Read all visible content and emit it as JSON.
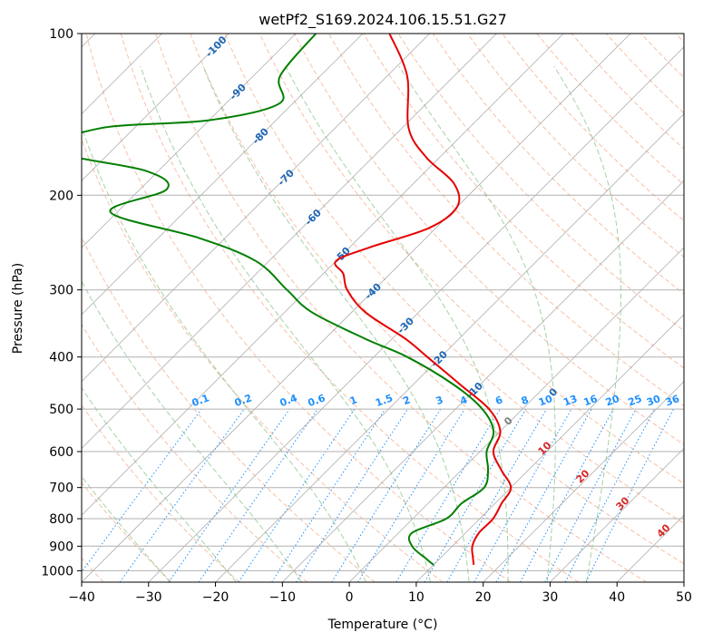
{
  "chart_data": {
    "type": "line",
    "title": "wetPf2_S169.2024.106.15.51.G27",
    "xlabel": "Temperature (°C)",
    "ylabel": "Pressure (hPa)",
    "xlim": [
      -40,
      50
    ],
    "ylim": [
      1050,
      100
    ],
    "y_scale": "log",
    "grid": true,
    "skew_t": true,
    "x_ticks": [
      -40,
      -30,
      -20,
      -10,
      0,
      10,
      20,
      30,
      40,
      50
    ],
    "y_ticks": [
      100,
      200,
      300,
      400,
      500,
      600,
      700,
      800,
      900,
      1000
    ],
    "colors": {
      "temperature": "#e60000",
      "dewpoint": "#007f00",
      "isotherm": "#1f66b4",
      "dry_adiabat": "#f4a582",
      "moist_adiabat": "#7fbf7f",
      "mixing_ratio": "#1e90ff",
      "mixing_label": "#1e90ff",
      "isotherm_label": "#1f66b4",
      "moist_label": "#d62728",
      "grid": "#b0b0b0"
    },
    "isotherm_labels": [
      "-100",
      "-90",
      "-80",
      "-70",
      "-60",
      "-50",
      "-40",
      "-30",
      "-20",
      "-10",
      "0"
    ],
    "isotherm_label_values": [
      -100,
      -90,
      -80,
      -70,
      -60,
      -50,
      -40,
      -30,
      -20,
      -10,
      0
    ],
    "moist_labels": [
      "10",
      "20",
      "30",
      "40"
    ],
    "mixing_ratio_labels": [
      "0.1",
      "0.2",
      "0.4",
      "0.6",
      "1",
      "1.5",
      "2",
      "3",
      "4",
      "6",
      "8",
      "10",
      "13",
      "16",
      "20",
      "25",
      "30",
      "36"
    ],
    "mixing_ratio_values": [
      0.1,
      0.2,
      0.4,
      0.6,
      1,
      1.5,
      2,
      3,
      4,
      6,
      8,
      10,
      13,
      16,
      20,
      25,
      30,
      36
    ],
    "series": [
      {
        "key": "temperature",
        "points": [
          [
            100,
            -76
          ],
          [
            120,
            -67
          ],
          [
            150,
            -59
          ],
          [
            170,
            -52
          ],
          [
            190,
            -44
          ],
          [
            210,
            -40
          ],
          [
            230,
            -41
          ],
          [
            250,
            -47
          ],
          [
            265,
            -50
          ],
          [
            280,
            -47
          ],
          [
            300,
            -44
          ],
          [
            330,
            -38
          ],
          [
            370,
            -28
          ],
          [
            400,
            -22
          ],
          [
            450,
            -13
          ],
          [
            500,
            -5
          ],
          [
            550,
            0
          ],
          [
            600,
            2
          ],
          [
            650,
            6
          ],
          [
            700,
            10
          ],
          [
            750,
            11
          ],
          [
            800,
            12
          ],
          [
            850,
            12
          ],
          [
            900,
            13
          ],
          [
            950,
            15
          ],
          [
            975,
            16
          ]
        ]
      },
      {
        "key": "dewpoint",
        "points": [
          [
            100,
            -87
          ],
          [
            120,
            -86
          ],
          [
            135,
            -82
          ],
          [
            145,
            -90
          ],
          [
            150,
            -105
          ],
          [
            165,
            -109
          ],
          [
            180,
            -92
          ],
          [
            195,
            -86
          ],
          [
            215,
            -91
          ],
          [
            240,
            -74
          ],
          [
            265,
            -62
          ],
          [
            300,
            -53
          ],
          [
            330,
            -46
          ],
          [
            370,
            -34
          ],
          [
            400,
            -25
          ],
          [
            450,
            -14
          ],
          [
            500,
            -6
          ],
          [
            550,
            -1
          ],
          [
            600,
            1
          ],
          [
            650,
            4
          ],
          [
            700,
            6
          ],
          [
            750,
            5
          ],
          [
            800,
            5
          ],
          [
            850,
            2
          ],
          [
            900,
            4
          ],
          [
            950,
            8
          ],
          [
            975,
            10
          ]
        ]
      }
    ]
  }
}
